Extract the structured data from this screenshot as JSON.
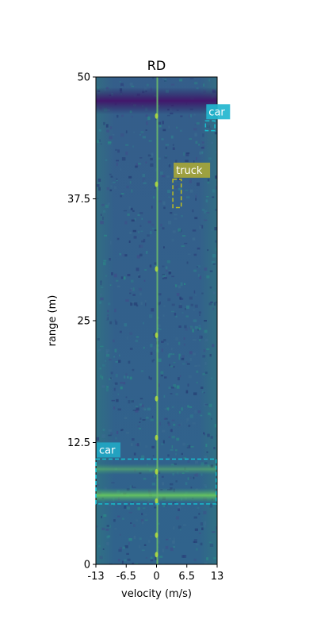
{
  "chart_data": {
    "type": "heatmap",
    "title": "RD",
    "xlabel": "velocity (m/s)",
    "ylabel": "range (m)",
    "xlim": [
      -13,
      13
    ],
    "ylim": [
      0,
      50
    ],
    "x_ticks": [
      "-13",
      "-6.5",
      "0",
      "6.5",
      "13"
    ],
    "y_ticks": [
      "0",
      "12.5",
      "25",
      "37.5",
      "50"
    ],
    "colormap": "viridis",
    "bright_rows_range_m": [
      47.2,
      6.8,
      9.6
    ],
    "zero_velocity_line": true,
    "detections": [
      {
        "label": "car",
        "color": "#17becf",
        "label_bg": "#22b6cf",
        "velocity": [
          10.5,
          12.5
        ],
        "range": [
          44.5,
          45.5
        ]
      },
      {
        "label": "truck",
        "color": "#bcbd22",
        "label_bg": "#a6a63a",
        "velocity": [
          3.5,
          5.3
        ],
        "range": [
          36.6,
          39.5
        ]
      },
      {
        "label": "car",
        "color": "#17becf",
        "label_bg": "#22a7c4",
        "velocity": [
          -13,
          12.8
        ],
        "range": [
          6.2,
          10.8
        ]
      }
    ]
  }
}
